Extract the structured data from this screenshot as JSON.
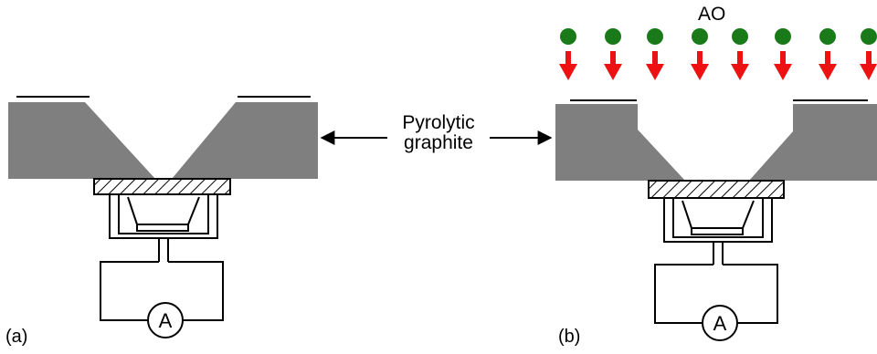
{
  "labels": {
    "center": "Pyrolytic\ngraphite",
    "ao": "AO",
    "panel_a": "(a)",
    "panel_b": "(b)",
    "ammeter_a": "A",
    "ammeter_b": "A"
  },
  "colors": {
    "graphite": "#7f7f7f",
    "atom": "#1a7a1a",
    "arrow": "#ee1111",
    "line": "#000000"
  },
  "icons": {
    "ao_particle": "green-circle-icon",
    "flux_arrow": "red-down-arrow-icon"
  }
}
